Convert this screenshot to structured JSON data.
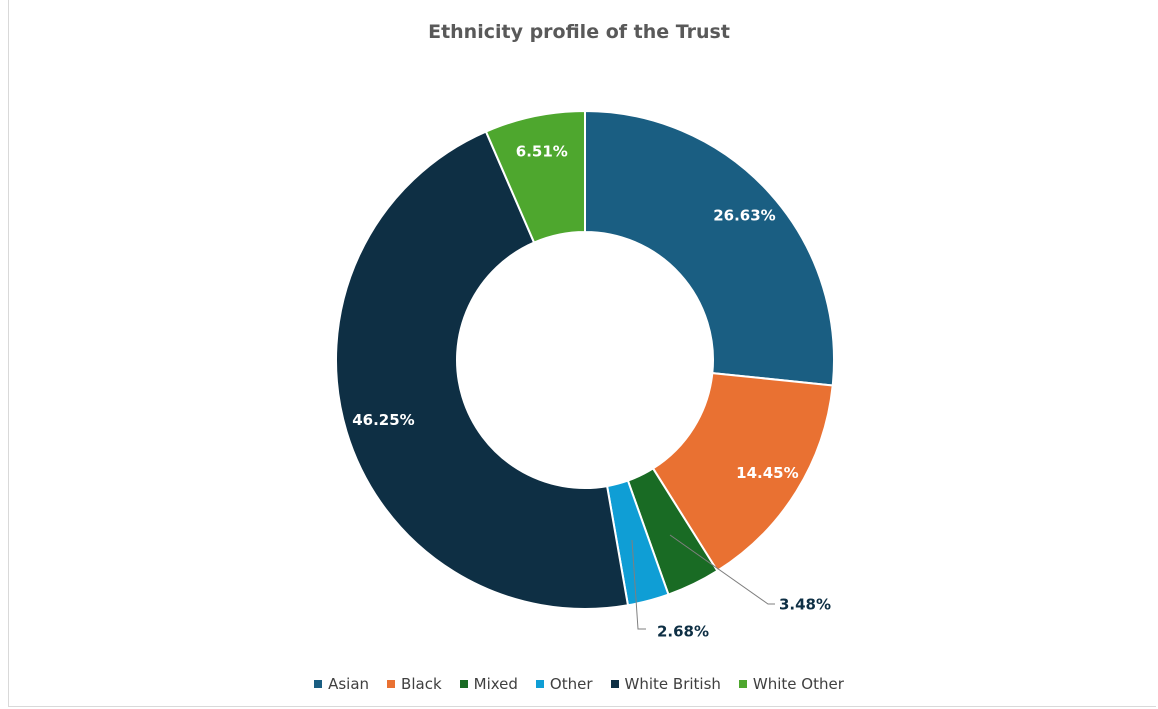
{
  "chart_data": {
    "type": "pie",
    "subtype": "donut",
    "title": "Ethnicity profile of the Trust",
    "categories": [
      "Asian",
      "Black",
      "Mixed",
      "Other",
      "White British",
      "White Other"
    ],
    "values": [
      26.63,
      14.45,
      3.48,
      2.68,
      46.25,
      6.51
    ],
    "labels": [
      "26.63%",
      "14.45%",
      "3.48%",
      "2.68%",
      "46.25%",
      "6.51%"
    ],
    "colors": [
      "#1a5e82",
      "#e97132",
      "#196b24",
      "#0f9ed5",
      "#0e2f44",
      "#4ea72e"
    ],
    "legend_position": "bottom"
  }
}
